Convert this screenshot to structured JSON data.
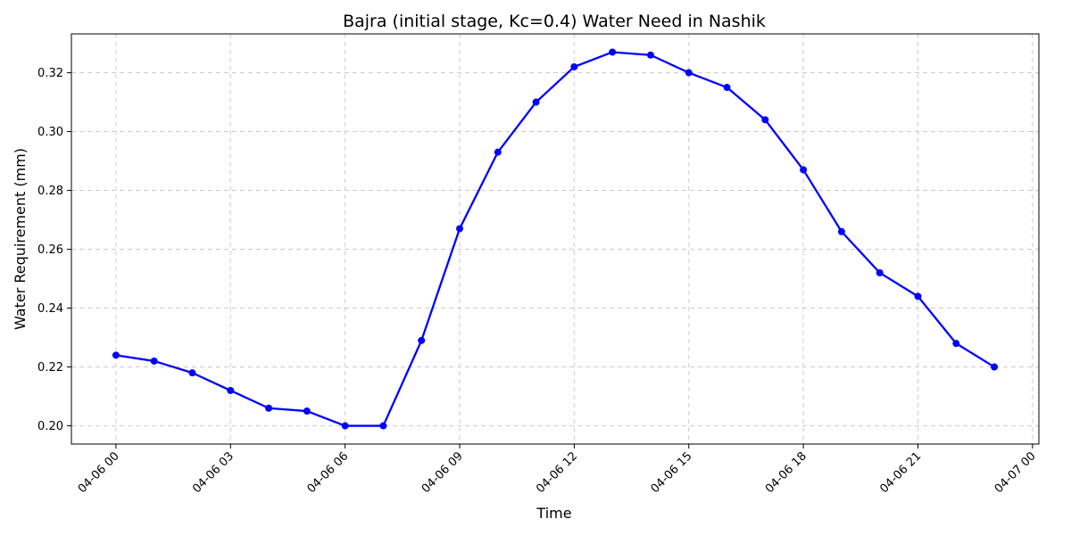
{
  "chart_data": {
    "type": "line",
    "title": "Bajra (initial stage, Kc=0.4) Water Need in Nashik",
    "xlabel": "Time",
    "ylabel": "Water Requirement (mm)",
    "x": [
      "04-06 00:00",
      "04-06 01:00",
      "04-06 02:00",
      "04-06 03:00",
      "04-06 04:00",
      "04-06 05:00",
      "04-06 06:00",
      "04-06 07:00",
      "04-06 08:00",
      "04-06 09:00",
      "04-06 10:00",
      "04-06 11:00",
      "04-06 12:00",
      "04-06 13:00",
      "04-06 14:00",
      "04-06 15:00",
      "04-06 16:00",
      "04-06 17:00",
      "04-06 18:00",
      "04-06 19:00",
      "04-06 20:00",
      "04-06 21:00",
      "04-06 22:00",
      "04-06 23:00"
    ],
    "values": [
      0.224,
      0.222,
      0.218,
      0.212,
      0.206,
      0.205,
      0.2,
      0.2,
      0.229,
      0.267,
      0.293,
      0.31,
      0.322,
      0.327,
      0.326,
      0.32,
      0.315,
      0.304,
      0.287,
      0.266,
      0.252,
      0.244,
      0.228,
      0.22
    ],
    "xticks": [
      "04-06 00",
      "04-06 03",
      "04-06 06",
      "04-06 09",
      "04-06 12",
      "04-06 15",
      "04-06 18",
      "04-06 21",
      "04-07 00"
    ],
    "yticks": [
      "0.20",
      "0.22",
      "0.24",
      "0.26",
      "0.28",
      "0.30",
      "0.32"
    ],
    "ylim": [
      0.1938,
      0.3332
    ],
    "xlim": [
      "04-05 22:50",
      "04-07 00:10"
    ],
    "grid": true,
    "line_color": "#0000ff"
  }
}
